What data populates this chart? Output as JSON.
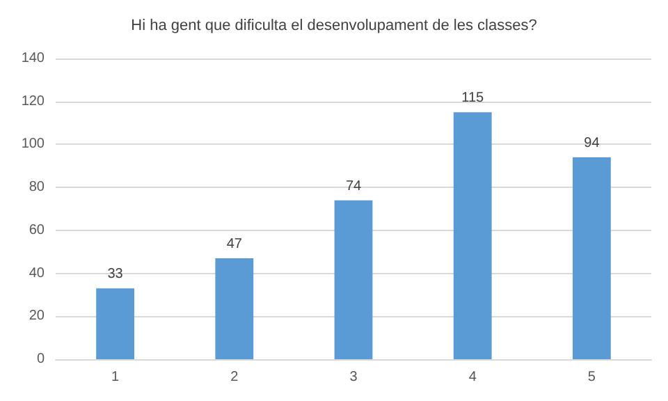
{
  "chart_data": {
    "type": "bar",
    "title": "Hi ha gent que dificulta el desenvolupament de les classes?",
    "categories": [
      "1",
      "2",
      "3",
      "4",
      "5"
    ],
    "values": [
      33,
      47,
      74,
      115,
      94
    ],
    "color": "#5b9bd5",
    "ylim": [
      0,
      140
    ],
    "yticks": [
      0,
      20,
      40,
      60,
      80,
      100,
      120,
      140
    ],
    "grid": "y",
    "data_labels": true
  }
}
